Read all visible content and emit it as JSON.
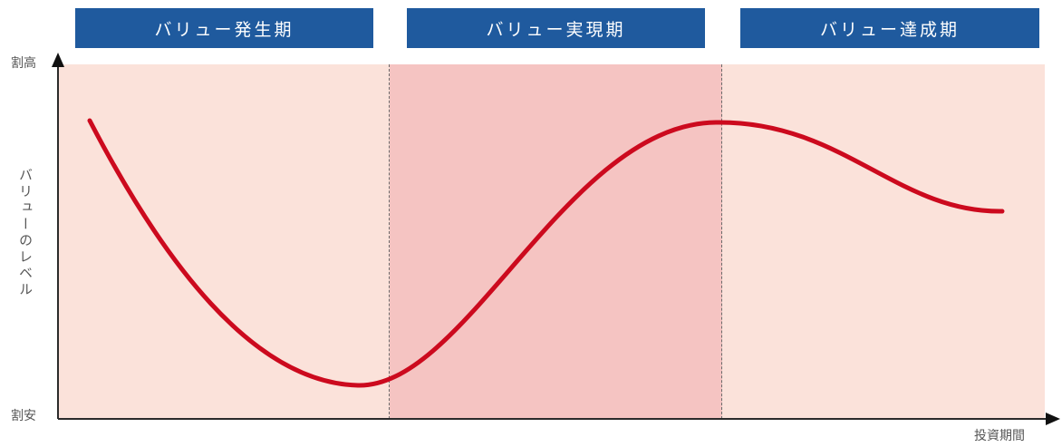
{
  "phases": [
    {
      "label": "バリュー発生期",
      "color": "#fbe2da"
    },
    {
      "label": "バリュー実現期",
      "color": "#f5c4c2"
    },
    {
      "label": "バリュー達成期",
      "color": "#fbe2da"
    }
  ],
  "header_color": "#1f5a9e",
  "curve_color": "#cc0a1e",
  "axes": {
    "y_top_label": "割高",
    "y_bottom_label": "割安",
    "y_title": "バリューのレベル",
    "x_title": "投資期間"
  }
}
